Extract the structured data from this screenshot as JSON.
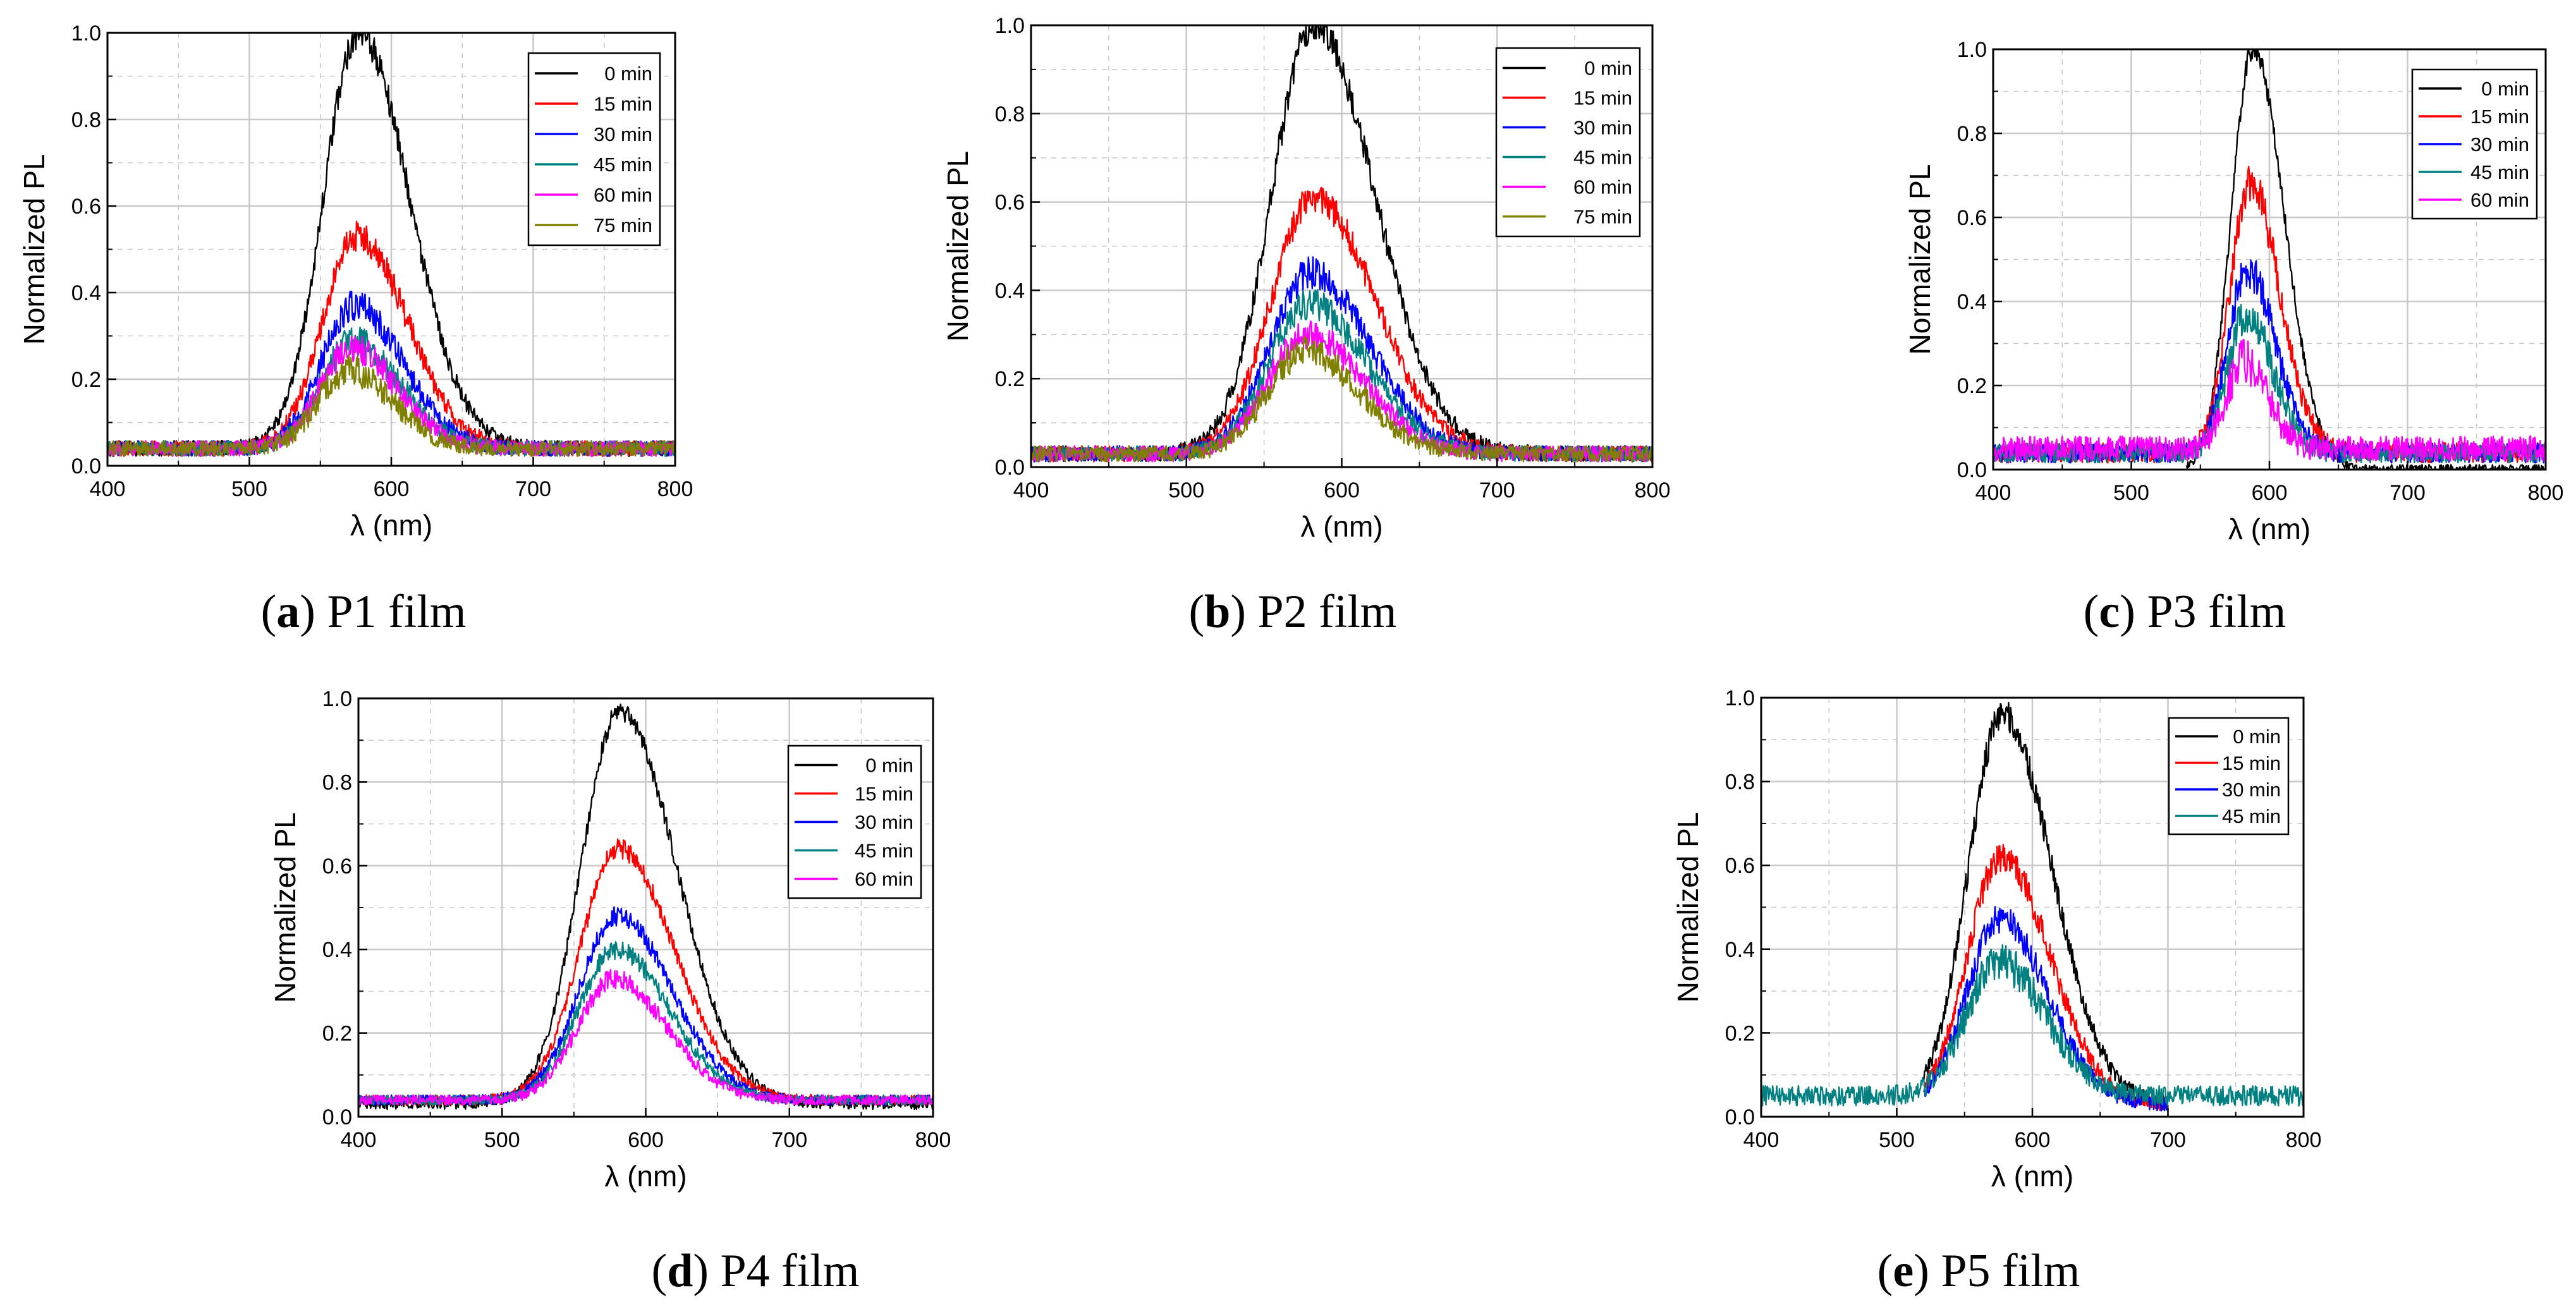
{
  "figure": {
    "colors": {
      "0 min": "#000000",
      "15 min": "#ff0000",
      "30 min": "#0000ff",
      "45 min": "#008080",
      "60 min": "#ff00ff",
      "75 min": "#808000",
      "grid": "#c8c8c8"
    }
  },
  "chart_data": [
    {
      "id": "a",
      "type": "line",
      "caption_letter": "a",
      "caption_text": "P1 film",
      "xlabel": "λ (nm)",
      "ylabel": "Normalized PL",
      "xlim": [
        400,
        800
      ],
      "ylim": [
        0,
        1.0
      ],
      "xticks": [
        400,
        500,
        600,
        700,
        800
      ],
      "yticks": [
        "0.0",
        "0.2",
        "0.4",
        "0.6",
        "0.8",
        "1.0"
      ],
      "legend": "top-right",
      "x_range": [
        400,
        800
      ],
      "onset_nm": 525,
      "series": [
        {
          "name": "0 min",
          "peak_nm": 577,
          "peak": 1.0,
          "baseline": 0.04,
          "noise": 0.03
        },
        {
          "name": "15 min",
          "peak_nm": 576,
          "peak": 0.53,
          "baseline": 0.04,
          "noise": 0.03
        },
        {
          "name": "30 min",
          "peak_nm": 574,
          "peak": 0.37,
          "baseline": 0.04,
          "noise": 0.03
        },
        {
          "name": "45 min",
          "peak_nm": 573,
          "peak": 0.29,
          "baseline": 0.04,
          "noise": 0.03
        },
        {
          "name": "60 min",
          "peak_nm": 572,
          "peak": 0.27,
          "baseline": 0.04,
          "noise": 0.03
        },
        {
          "name": "75 min",
          "peak_nm": 570,
          "peak": 0.22,
          "baseline": 0.04,
          "noise": 0.03
        }
      ]
    },
    {
      "id": "b",
      "type": "line",
      "caption_letter": "b",
      "caption_text": "P2 film",
      "xlabel": "λ (nm)",
      "ylabel": "Normalized PL",
      "xlim": [
        400,
        800
      ],
      "ylim": [
        0,
        1.0
      ],
      "xticks": [
        400,
        500,
        600,
        700,
        800
      ],
      "yticks": [
        "0.0",
        "0.2",
        "0.4",
        "0.6",
        "0.8",
        "1.0"
      ],
      "legend": "top-right",
      "x_range": [
        400,
        800
      ],
      "onset_nm": 525,
      "series": [
        {
          "name": "0 min",
          "peak_nm": 582,
          "peak": 1.0,
          "baseline": 0.03,
          "noise": 0.03
        },
        {
          "name": "15 min",
          "peak_nm": 582,
          "peak": 0.61,
          "baseline": 0.03,
          "noise": 0.03
        },
        {
          "name": "30 min",
          "peak_nm": 580,
          "peak": 0.44,
          "baseline": 0.03,
          "noise": 0.03
        },
        {
          "name": "45 min",
          "peak_nm": 579,
          "peak": 0.37,
          "baseline": 0.03,
          "noise": 0.03
        },
        {
          "name": "60 min",
          "peak_nm": 578,
          "peak": 0.3,
          "baseline": 0.03,
          "noise": 0.03
        },
        {
          "name": "75 min",
          "peak_nm": 576,
          "peak": 0.26,
          "baseline": 0.03,
          "noise": 0.03
        }
      ]
    },
    {
      "id": "c",
      "type": "line",
      "caption_letter": "c",
      "caption_text": "P3 film",
      "xlabel": "λ (nm)",
      "ylabel": "Normalized PL",
      "xlim": [
        400,
        800
      ],
      "ylim": [
        0,
        1.0
      ],
      "xticks": [
        400,
        500,
        600,
        700,
        800
      ],
      "yticks": [
        "0.0",
        "0.2",
        "0.4",
        "0.6",
        "0.8",
        "1.0"
      ],
      "legend": "top-right",
      "x_range": [
        400,
        800
      ],
      "onset_nm": 555,
      "series": [
        {
          "name": "0 min",
          "peak_nm": 588,
          "peak": 1.0,
          "baseline": 0.0,
          "noise": 0.02,
          "x_from": 540
        },
        {
          "name": "15 min",
          "peak_nm": 586,
          "peak": 0.68,
          "baseline": 0.04,
          "noise": 0.04
        },
        {
          "name": "30 min",
          "peak_nm": 584,
          "peak": 0.48,
          "baseline": 0.04,
          "noise": 0.04
        },
        {
          "name": "45 min",
          "peak_nm": 583,
          "peak": 0.37,
          "baseline": 0.04,
          "noise": 0.04
        },
        {
          "name": "60 min",
          "peak_nm": 581,
          "peak": 0.25,
          "baseline": 0.05,
          "noise": 0.05
        }
      ]
    },
    {
      "id": "d",
      "type": "line",
      "caption_letter": "d",
      "caption_text": "P4 film",
      "xlabel": "λ (nm)",
      "ylabel": "Normalized PL",
      "xlim": [
        400,
        800
      ],
      "ylim": [
        0,
        1.0
      ],
      "xticks": [
        400,
        500,
        600,
        700,
        800
      ],
      "yticks": [
        "0.0",
        "0.2",
        "0.4",
        "0.6",
        "0.8",
        "1.0"
      ],
      "legend": "top-right",
      "x_range": [
        400,
        800
      ],
      "onset_nm": 525,
      "series": [
        {
          "name": "0 min",
          "peak_nm": 582,
          "peak": 0.97,
          "baseline": 0.03,
          "noise": 0.02
        },
        {
          "name": "15 min",
          "peak_nm": 581,
          "peak": 0.64,
          "baseline": 0.04,
          "noise": 0.02
        },
        {
          "name": "30 min",
          "peak_nm": 580,
          "peak": 0.48,
          "baseline": 0.04,
          "noise": 0.02
        },
        {
          "name": "45 min",
          "peak_nm": 579,
          "peak": 0.4,
          "baseline": 0.04,
          "noise": 0.02
        },
        {
          "name": "60 min",
          "peak_nm": 578,
          "peak": 0.33,
          "baseline": 0.04,
          "noise": 0.02
        }
      ]
    },
    {
      "id": "e",
      "type": "line",
      "caption_letter": "e",
      "caption_text": "P5 film",
      "xlabel": "λ (nm)",
      "ylabel": "Normalized PL",
      "xlim": [
        400,
        800
      ],
      "ylim": [
        0,
        1.0
      ],
      "xticks": [
        400,
        500,
        600,
        700,
        800
      ],
      "yticks": [
        "0.0",
        "0.2",
        "0.4",
        "0.6",
        "0.8",
        "1.0"
      ],
      "legend": "top-right",
      "x_range": [
        400,
        800
      ],
      "onset_nm": 525,
      "series": [
        {
          "name": "0 min",
          "peak_nm": 578,
          "peak": 0.96,
          "baseline": 0.03,
          "noise": 0.03,
          "x_from": 520,
          "x_to": 700
        },
        {
          "name": "15 min",
          "peak_nm": 577,
          "peak": 0.62,
          "baseline": 0.03,
          "noise": 0.03,
          "x_from": 520,
          "x_to": 700
        },
        {
          "name": "30 min",
          "peak_nm": 576,
          "peak": 0.47,
          "baseline": 0.03,
          "noise": 0.03,
          "x_from": 520,
          "x_to": 700
        },
        {
          "name": "45 min",
          "peak_nm": 575,
          "peak": 0.37,
          "baseline": 0.05,
          "noise": 0.04
        }
      ]
    }
  ]
}
